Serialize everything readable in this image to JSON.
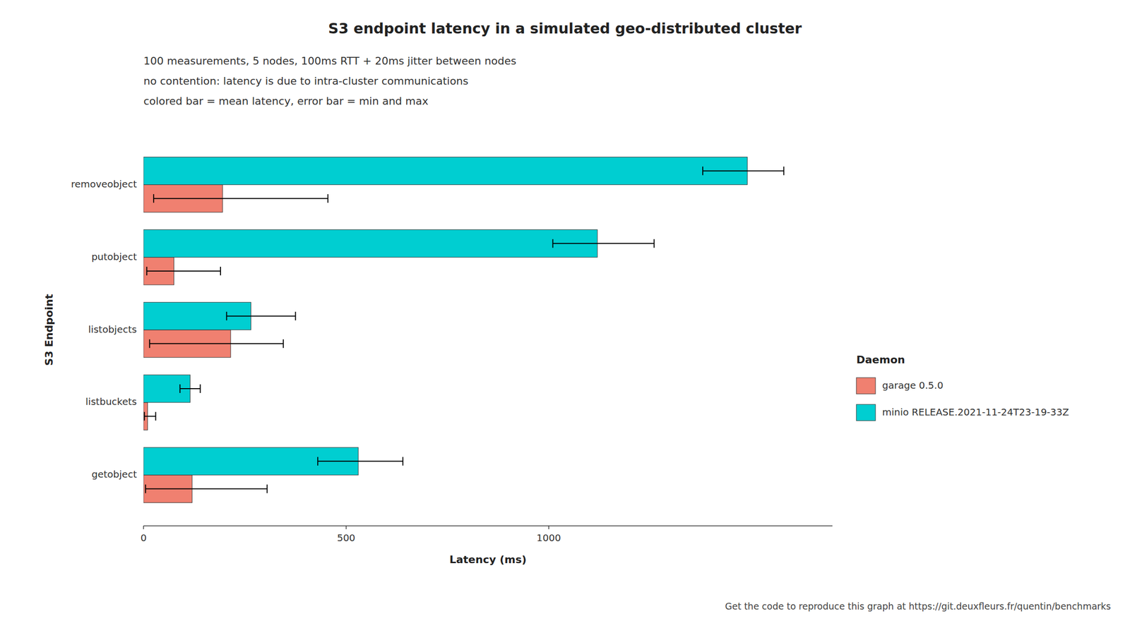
{
  "chart_data": {
    "type": "bar",
    "orientation": "horizontal",
    "title": "S3 endpoint latency in a simulated geo-distributed cluster",
    "subtitle": [
      "100 measurements, 5 nodes, 100ms RTT + 20ms jitter between nodes",
      "no contention: latency is due to intra-cluster communications",
      "colored bar = mean latency, error bar = min and max"
    ],
    "xlabel": "Latency (ms)",
    "ylabel": "S3 Endpoint",
    "annotations": [
      "Get the code to reproduce this graph at https://git.deuxfleurs.fr/quentin/benchmarks"
    ],
    "categories": [
      "getobject",
      "listbuckets",
      "listobjects",
      "putobject",
      "removeobject"
    ],
    "series": [
      {
        "name": "garage 0.5.0",
        "color": "#F08070",
        "values": [
          120,
          10,
          215,
          75,
          195
        ],
        "min": [
          5,
          2,
          15,
          8,
          25
        ],
        "max": [
          305,
          30,
          345,
          190,
          455
        ]
      },
      {
        "name": "minio RELEASE.2021-11-24T23-19-33Z",
        "color": "#00CED1",
        "values": [
          530,
          115,
          265,
          1120,
          1490
        ],
        "min": [
          430,
          90,
          205,
          1010,
          1380
        ],
        "max": [
          640,
          140,
          375,
          1260,
          1580
        ]
      }
    ],
    "legend_title": "Daemon",
    "legend": "right",
    "grid": false,
    "xlim": [
      0,
      1700
    ],
    "xticks": [
      0,
      500,
      1000
    ]
  }
}
